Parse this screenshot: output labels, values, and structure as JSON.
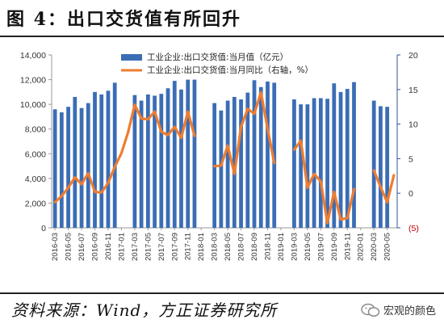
{
  "title": "图 4：出口交货值有所回升",
  "source": "资料来源：Wind，方正证券研究所",
  "watermark": "宏观的颜色",
  "colors": {
    "bar": "#3b6db5",
    "line": "#ee7d31",
    "axis_right": "#2f5597"
  },
  "chart_data": {
    "type": "bar",
    "legend_position": "top-center",
    "grid": false,
    "x": [
      "2016-03",
      "2016-04",
      "2016-05",
      "2016-06",
      "2016-07",
      "2016-08",
      "2016-09",
      "2016-10",
      "2016-11",
      "2016-12",
      "2017-01",
      "2017-02",
      "2017-03",
      "2017-04",
      "2017-05",
      "2017-06",
      "2017-07",
      "2017-08",
      "2017-09",
      "2017-10",
      "2017-11",
      "2017-12",
      "2018-01",
      "2018-02",
      "2018-03",
      "2018-04",
      "2018-05",
      "2018-06",
      "2018-07",
      "2018-08",
      "2018-09",
      "2018-10",
      "2018-11",
      "2018-12",
      "2019-01",
      "2019-02",
      "2019-03",
      "2019-04",
      "2019-05",
      "2019-06",
      "2019-07",
      "2019-08",
      "2019-09",
      "2019-10",
      "2019-11",
      "2019-12",
      "2020-01",
      "2020-02",
      "2020-03",
      "2020-04",
      "2020-05",
      "2020-06"
    ],
    "x_tick_labels": [
      "2016-03",
      "2016-05",
      "2016-07",
      "2016-09",
      "2016-11",
      "2017-01",
      "2017-03",
      "2017-05",
      "2017-07",
      "2017-09",
      "2017-11",
      "2018-01",
      "2018-03",
      "2018-05",
      "2018-07",
      "2018-09",
      "2018-11",
      "2019-01",
      "2019-03",
      "2019-05",
      "2019-07",
      "2019-09",
      "2019-11",
      "2020-01",
      "2020-03",
      "2020-05"
    ],
    "yleft_ticks": [
      "0",
      "2,000",
      "4,000",
      "6,000",
      "8,000",
      "10,000",
      "12,000",
      "14,000"
    ],
    "yleft_lim": [
      0,
      14000
    ],
    "yright_ticks": [
      "(5)",
      "0",
      "5",
      "10",
      "15",
      "20"
    ],
    "yright_lim": [
      -5,
      20
    ],
    "series": [
      {
        "name": "工业企业:出口交货值:当月值（亿元）",
        "type": "bar",
        "axis": "left",
        "values": [
          9600,
          9350,
          9800,
          10600,
          9700,
          10100,
          11000,
          10800,
          11100,
          11750,
          null,
          null,
          10750,
          10300,
          10800,
          10700,
          10850,
          11300,
          11900,
          11200,
          12000,
          12000,
          null,
          null,
          10100,
          9500,
          10300,
          10600,
          10400,
          10950,
          11950,
          11400,
          11850,
          11750,
          null,
          null,
          10400,
          10000,
          10000,
          10500,
          10500,
          10450,
          11700,
          11000,
          11250,
          11800,
          null,
          null,
          10300,
          9850,
          9800,
          null
        ]
      },
      {
        "name": "工业企业:出口交货值:当月同比（右轴，%）",
        "type": "line",
        "axis": "right",
        "values": [
          -1.3,
          -0.4,
          0.8,
          2.3,
          1.3,
          2.9,
          0.2,
          0.1,
          1.5,
          3.8,
          5.8,
          8.8,
          12.8,
          10.8,
          10.7,
          11.8,
          8.9,
          8.4,
          9.6,
          8.0,
          11.8,
          8.3,
          null,
          null,
          3.9,
          4.0,
          6.9,
          2.8,
          9.6,
          12.2,
          11.5,
          14.6,
          9.3,
          4.4,
          null,
          null,
          6.3,
          7.6,
          0.8,
          2.8,
          1.7,
          -4.3,
          0.2,
          -3.8,
          -3.6,
          0.6,
          null,
          null,
          3.3,
          0.9,
          -1.3,
          2.6
        ]
      }
    ]
  }
}
